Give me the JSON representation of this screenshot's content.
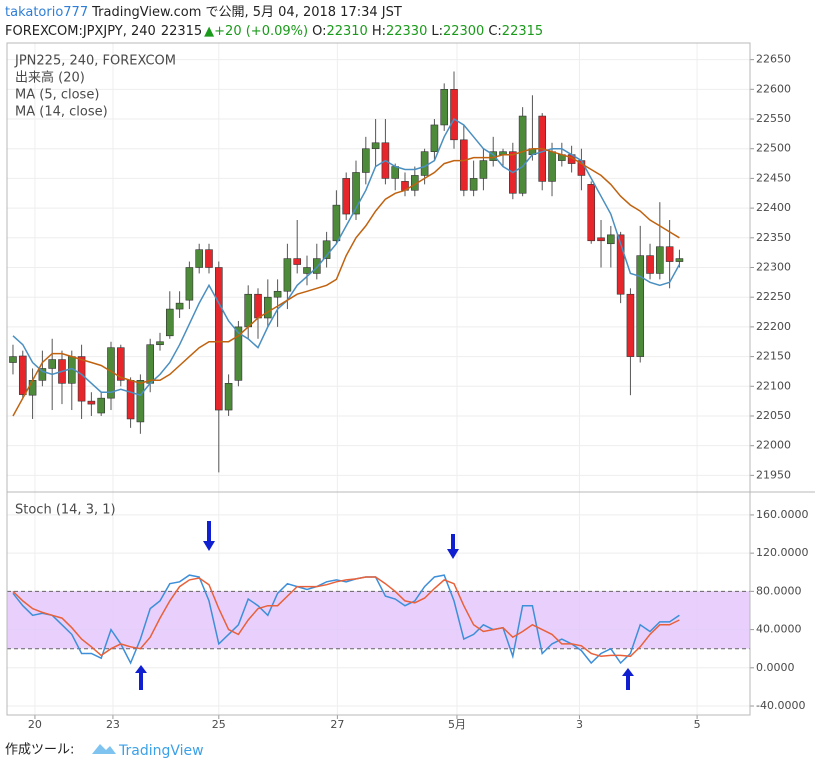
{
  "header": {
    "user": "takatorio777",
    "published": "TradingView.com で公開, 5月 04, 2018 17:34 JST",
    "symbol": "FOREXCOM:JPXJPY, 240",
    "last": "22315",
    "change": "▲+20 (+0.09%)",
    "o_label": "O:",
    "o": "22310",
    "h_label": "H:",
    "h": "22330",
    "l_label": "L:",
    "l": "22300",
    "c_label": "C:",
    "c": "22315"
  },
  "footer": {
    "made_with": "作成ツール:",
    "brand": "TradingView"
  },
  "chart_data": [
    {
      "type": "candlestick",
      "title": "JPN225, 240, FOREXCOM",
      "annotations": [
        "出来高 (20)"
      ],
      "up_color": "#4d8a3a",
      "down_color": "#e6262b",
      "x": [
        0,
        1,
        2,
        3,
        4,
        5,
        6,
        7,
        8,
        9,
        10,
        11,
        12,
        13,
        14,
        15,
        16,
        17,
        18,
        19,
        20,
        21,
        22,
        23,
        24,
        25,
        26,
        27,
        28,
        29,
        30,
        31,
        32,
        33,
        34,
        35,
        36,
        37,
        38,
        39,
        40,
        41,
        42,
        43,
        44,
        45,
        46,
        47,
        48,
        49,
        50,
        51,
        52,
        53,
        54,
        55,
        56,
        57,
        58,
        59,
        60,
        61,
        62,
        63,
        64,
        65,
        66,
        67,
        68
      ],
      "open": [
        22140,
        22151,
        22085,
        22110,
        22130,
        22145,
        22105,
        22150,
        22075,
        22055,
        22080,
        22165,
        22110,
        22040,
        22105,
        22170,
        22185,
        22230,
        22245,
        22300,
        22330,
        22300,
        22060,
        22110,
        22200,
        22255,
        22215,
        22250,
        22260,
        22315,
        22290,
        22290,
        22315,
        22345,
        22450,
        22390,
        22460,
        22500,
        22510,
        22450,
        22445,
        22430,
        22455,
        22495,
        22540,
        22600,
        22515,
        22430,
        22450,
        22480,
        22490,
        22495,
        22425,
        22490,
        22555,
        22445,
        22480,
        22490,
        22480,
        22440,
        22350,
        22340,
        22355,
        22255,
        22150,
        22320,
        22290,
        22335,
        22310
      ],
      "high": [
        22170,
        22160,
        22130,
        22160,
        22180,
        22160,
        22160,
        22170,
        22090,
        22090,
        22175,
        22170,
        22115,
        22120,
        22180,
        22190,
        22260,
        22260,
        22310,
        22340,
        22340,
        22310,
        22120,
        22210,
        22270,
        22265,
        22280,
        22280,
        22340,
        22380,
        22320,
        22340,
        22360,
        22430,
        22460,
        22480,
        22520,
        22550,
        22550,
        22475,
        22460,
        22470,
        22500,
        22550,
        22610,
        22630,
        22540,
        22480,
        22500,
        22520,
        22500,
        22510,
        22570,
        22590,
        22560,
        22510,
        22510,
        22505,
        22500,
        22445,
        22380,
        22370,
        22360,
        22265,
        22370,
        22340,
        22410,
        22380,
        22330
      ],
      "low": [
        22120,
        22080,
        22045,
        22100,
        22060,
        22070,
        22060,
        22045,
        22050,
        22050,
        22060,
        22100,
        22030,
        22020,
        22090,
        22160,
        22180,
        22215,
        22230,
        22290,
        22290,
        21955,
        22050,
        22100,
        22180,
        22180,
        22200,
        22200,
        22230,
        22290,
        22270,
        22280,
        22300,
        22340,
        22380,
        22380,
        22440,
        22470,
        22440,
        22430,
        22420,
        22420,
        22440,
        22480,
        22530,
        22500,
        22420,
        22420,
        22430,
        22470,
        22470,
        22415,
        22420,
        22480,
        22430,
        22420,
        22470,
        22460,
        22430,
        22340,
        22300,
        22300,
        22240,
        22085,
        22140,
        22280,
        22280,
        22265,
        22300
      ],
      "close": [
        22150,
        22086,
        22110,
        22130,
        22145,
        22105,
        22150,
        22075,
        22070,
        22080,
        22165,
        22110,
        22045,
        22110,
        22170,
        22175,
        22230,
        22240,
        22300,
        22330,
        22300,
        22060,
        22105,
        22200,
        22255,
        22215,
        22250,
        22260,
        22315,
        22305,
        22300,
        22315,
        22345,
        22405,
        22390,
        22460,
        22500,
        22510,
        22450,
        22470,
        22430,
        22455,
        22495,
        22540,
        22600,
        22515,
        22430,
        22450,
        22480,
        22495,
        22495,
        22425,
        22555,
        22500,
        22445,
        22495,
        22490,
        22475,
        22455,
        22345,
        22345,
        22355,
        22255,
        22150,
        22320,
        22290,
        22335,
        22310,
        22315
      ],
      "series": [
        {
          "name": "MA (5, close)",
          "color": "#4a8fc0",
          "values": [
            22185,
            22170,
            22140,
            22125,
            22120,
            22125,
            22130,
            22120,
            22105,
            22090,
            22090,
            22095,
            22090,
            22085,
            22105,
            22120,
            22140,
            22170,
            22205,
            22240,
            22270,
            22240,
            22210,
            22190,
            22180,
            22165,
            22200,
            22230,
            22245,
            22270,
            22285,
            22300,
            22320,
            22340,
            22370,
            22400,
            22430,
            22470,
            22480,
            22470,
            22465,
            22465,
            22470,
            22480,
            22520,
            22550,
            22540,
            22520,
            22500,
            22490,
            22470,
            22460,
            22470,
            22490,
            22495,
            22500,
            22500,
            22490,
            22480,
            22450,
            22420,
            22390,
            22340,
            22290,
            22285,
            22275,
            22270,
            22275,
            22305
          ]
        },
        {
          "name": "MA (14, close)",
          "color": "#c0620f",
          "values": [
            22050,
            22080,
            22110,
            22140,
            22155,
            22155,
            22150,
            22145,
            22140,
            22135,
            22125,
            22115,
            22110,
            22105,
            22110,
            22110,
            22120,
            22135,
            22150,
            22165,
            22175,
            22175,
            22175,
            22185,
            22200,
            22215,
            22225,
            22235,
            22245,
            22255,
            22260,
            22265,
            22270,
            22280,
            22320,
            22350,
            22370,
            22395,
            22415,
            22425,
            22430,
            22440,
            22450,
            22460,
            22475,
            22480,
            22480,
            22485,
            22485,
            22485,
            22490,
            22490,
            22495,
            22500,
            22500,
            22495,
            22490,
            22485,
            22475,
            22465,
            22455,
            22440,
            22420,
            22405,
            22395,
            22380,
            22370,
            22360,
            22350
          ]
        }
      ],
      "xlim": [
        -0.61,
        75.2
      ],
      "ylim": [
        21922,
        22678
      ],
      "yticks": [
        21950,
        22000,
        22050,
        22100,
        22150,
        22200,
        22250,
        22300,
        22350,
        22400,
        22450,
        22500,
        22550,
        22600,
        22650
      ],
      "grid": true
    },
    {
      "type": "line",
      "title": "Stoch (14, 3, 1)",
      "x": [
        0,
        1,
        2,
        3,
        4,
        5,
        6,
        7,
        8,
        9,
        10,
        11,
        12,
        13,
        14,
        15,
        16,
        17,
        18,
        19,
        20,
        21,
        22,
        23,
        24,
        25,
        26,
        27,
        28,
        29,
        30,
        31,
        32,
        33,
        34,
        35,
        36,
        37,
        38,
        39,
        40,
        41,
        42,
        43,
        44,
        45,
        46,
        47,
        48,
        49,
        50,
        51,
        52,
        53,
        54,
        55,
        56,
        57,
        58,
        59,
        60,
        61,
        62,
        63,
        64,
        65,
        66,
        67,
        68
      ],
      "series": [
        {
          "color": "#3d8fd9",
          "values": [
            78,
            65,
            55,
            57,
            55,
            45,
            35,
            15,
            15,
            10,
            40,
            25,
            5,
            30,
            62,
            70,
            88,
            90,
            97,
            95,
            70,
            25,
            35,
            45,
            72,
            65,
            55,
            78,
            88,
            85,
            82,
            85,
            90,
            92,
            90,
            93,
            95,
            95,
            75,
            72,
            65,
            70,
            85,
            95,
            97,
            70,
            30,
            35,
            45,
            40,
            42,
            12,
            65,
            65,
            15,
            25,
            30,
            25,
            18,
            5,
            15,
            20,
            5,
            15,
            45,
            38,
            48,
            48,
            55
          ]
        },
        {
          "color": "#e8613a",
          "values": [
            80,
            70,
            62,
            58,
            55,
            52,
            42,
            30,
            22,
            13,
            20,
            25,
            22,
            20,
            32,
            52,
            70,
            85,
            92,
            94,
            87,
            62,
            40,
            35,
            50,
            62,
            65,
            65,
            75,
            85,
            85,
            85,
            87,
            90,
            92,
            93,
            95,
            95,
            88,
            80,
            70,
            68,
            73,
            83,
            92,
            88,
            65,
            45,
            38,
            40,
            42,
            32,
            38,
            45,
            40,
            35,
            25,
            25,
            23,
            15,
            12,
            13,
            13,
            12,
            22,
            35,
            45,
            45,
            50
          ]
        }
      ],
      "bands": [
        20,
        80
      ],
      "band_color": "#e3c4fb",
      "xlim": [
        -0.61,
        75.2
      ],
      "ylim": [
        -49.4,
        184
      ],
      "yticks": [
        {
          "value": -40,
          "label": "-40.0000"
        },
        {
          "value": 0,
          "label": "0.0000"
        },
        {
          "value": 40,
          "label": "40.0000"
        },
        {
          "value": 80,
          "label": "80.0000"
        },
        {
          "value": 120,
          "label": "120.0000"
        },
        {
          "value": 160,
          "label": "160.0000"
        }
      ],
      "xticks": [
        {
          "value": 2.24,
          "label": "20"
        },
        {
          "value": 10.2,
          "label": "23"
        },
        {
          "value": 21.0,
          "label": "25"
        },
        {
          "value": 33.1,
          "label": "27"
        },
        {
          "value": 45.3,
          "label": "5月"
        },
        {
          "value": 57.8,
          "label": "3"
        },
        {
          "value": 69.8,
          "label": "5"
        }
      ],
      "grid": true
    }
  ]
}
